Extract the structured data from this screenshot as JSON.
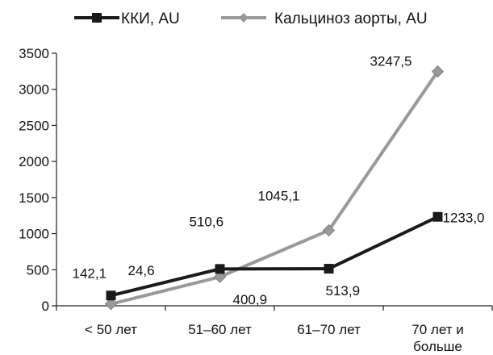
{
  "chart_data": {
    "type": "line",
    "title": "",
    "xlabel": "",
    "ylabel": "",
    "categories": [
      "< 50 лет",
      "51–60 лет",
      "61–70 лет",
      "70 лет и больше"
    ],
    "ylim": [
      0,
      3500
    ],
    "yticks": [
      0,
      500,
      1000,
      1500,
      2000,
      2500,
      3000,
      3500
    ],
    "grid": false,
    "legend_position": "top",
    "series": [
      {
        "name": "ККИ, AU",
        "color": "#1a1a1a",
        "marker": "square",
        "values": [
          142.1,
          510.6,
          513.9,
          1233.0
        ],
        "labels": [
          "142,1",
          "510,6",
          "513,9",
          "1233,0"
        ]
      },
      {
        "name": "Кальциноз аорты, AU",
        "color": "#999999",
        "marker": "diamond",
        "values": [
          24.6,
          400.9,
          1045.1,
          3247.5
        ],
        "labels": [
          "24,6",
          "400,9",
          "1045,1",
          "3247,5"
        ]
      }
    ]
  }
}
